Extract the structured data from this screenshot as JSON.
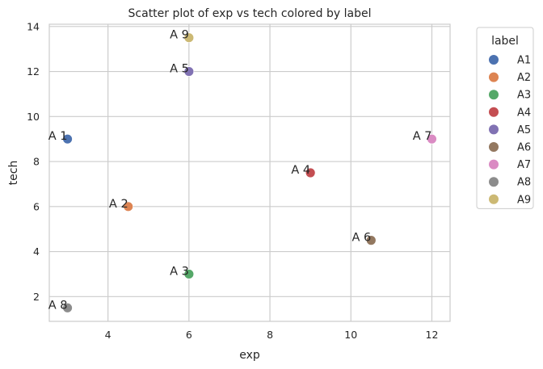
{
  "chart_data": {
    "type": "scatter",
    "title": "Scatter plot of exp vs tech colored by label",
    "xlabel": "exp",
    "ylabel": "tech",
    "xlim": [
      2.55,
      12.45
    ],
    "ylim": [
      0.9,
      14.1
    ],
    "xticks": [
      4,
      6,
      8,
      10,
      12
    ],
    "yticks": [
      2,
      4,
      6,
      8,
      10,
      12,
      14
    ],
    "grid": true,
    "legend": {
      "title": "label",
      "placement": "outside-right"
    },
    "points": [
      {
        "label": "A1",
        "annotation": "A 1",
        "x": 3.0,
        "y": 9.0,
        "color": "#4c72b0"
      },
      {
        "label": "A2",
        "annotation": "A 2",
        "x": 4.5,
        "y": 6.0,
        "color": "#dd8452"
      },
      {
        "label": "A3",
        "annotation": "A 3",
        "x": 6.0,
        "y": 3.0,
        "color": "#55a868"
      },
      {
        "label": "A4",
        "annotation": "A 4",
        "x": 9.0,
        "y": 7.5,
        "color": "#c44e52"
      },
      {
        "label": "A5",
        "annotation": "A 5",
        "x": 6.0,
        "y": 12.0,
        "color": "#8172b3"
      },
      {
        "label": "A6",
        "annotation": "A 6",
        "x": 10.5,
        "y": 4.5,
        "color": "#937860"
      },
      {
        "label": "A7",
        "annotation": "A 7",
        "x": 12.0,
        "y": 9.0,
        "color": "#da8bc3"
      },
      {
        "label": "A8",
        "annotation": "A 8",
        "x": 3.0,
        "y": 1.5,
        "color": "#8c8c8c"
      },
      {
        "label": "A9",
        "annotation": "A 9",
        "x": 6.0,
        "y": 13.5,
        "color": "#ccb974"
      }
    ]
  }
}
